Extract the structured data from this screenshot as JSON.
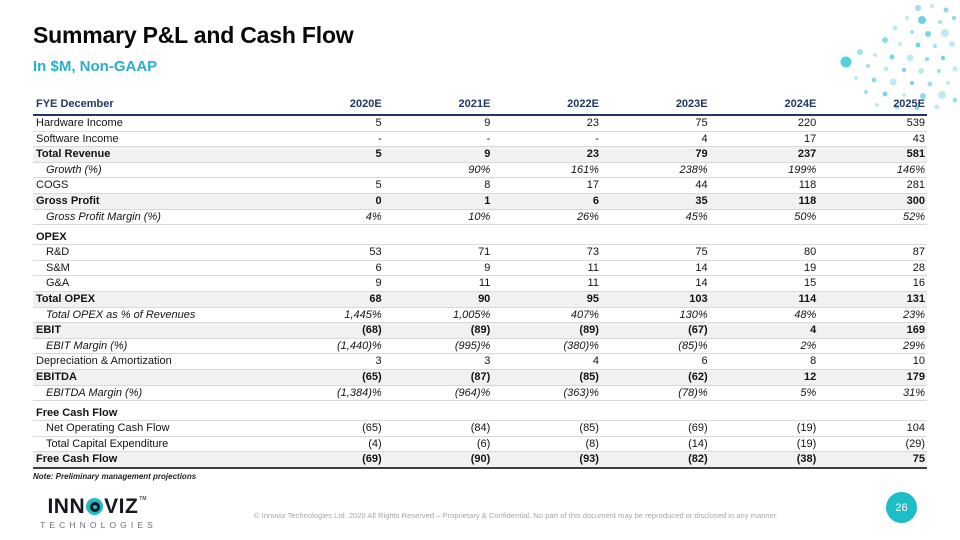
{
  "slide": {
    "title": "Summary P&L and Cash Flow",
    "subtitle": "In $M, Non-GAAP",
    "note": "Note: Preliminary management projections",
    "copyright": "© Innoviz Technologies Ltd. 2020 All Rights Reserved – Proprietary & Confidential. No part of this document may be reproduced or disclosed in any manner.",
    "page_number": "26"
  },
  "logo": {
    "word_part1": "INN",
    "word_part2": "VIZ",
    "tm": "TM",
    "subtext": "TECHNOLOGIES",
    "o_icon": "lidar-eye-icon"
  },
  "colors": {
    "teal": "#1EBEC9",
    "subtitle_teal": "#29AFC9",
    "navy": "#1F3864",
    "row_band": "#F1F1F1",
    "row_line": "#D9D9D9",
    "footer_gray": "#A6A6A6"
  },
  "table": {
    "columns": [
      "FYE December",
      "2020E",
      "2021E",
      "2022E",
      "2023E",
      "2024E",
      "2025E"
    ],
    "rows": [
      {
        "label": "Hardware Income",
        "style": "plain",
        "values": [
          "5",
          "9",
          "23",
          "75",
          "220",
          "539"
        ]
      },
      {
        "label": "Software Income",
        "style": "plain",
        "values": [
          "-",
          "-",
          "-",
          "4",
          "17",
          "43"
        ]
      },
      {
        "label": "Total Revenue",
        "style": "total",
        "values": [
          "5",
          "9",
          "23",
          "79",
          "237",
          "581"
        ]
      },
      {
        "label": "Growth (%)",
        "style": "italic",
        "values": [
          "",
          "90%",
          "161%",
          "238%",
          "199%",
          "146%"
        ]
      },
      {
        "label": "COGS",
        "style": "plain",
        "values": [
          "5",
          "8",
          "17",
          "44",
          "118",
          "281"
        ]
      },
      {
        "label": "Gross Profit",
        "style": "total",
        "values": [
          "0",
          "1",
          "6",
          "35",
          "118",
          "300"
        ]
      },
      {
        "label": "Gross Profit Margin (%)",
        "style": "italic",
        "values": [
          "4%",
          "10%",
          "26%",
          "45%",
          "50%",
          "52%"
        ]
      },
      {
        "type": "spacer"
      },
      {
        "label": "OPEX",
        "style": "section",
        "values": [
          "",
          "",
          "",
          "",
          "",
          ""
        ]
      },
      {
        "label": "R&D",
        "style": "sub",
        "values": [
          "53",
          "71",
          "73",
          "75",
          "80",
          "87"
        ]
      },
      {
        "label": "S&M",
        "style": "sub",
        "values": [
          "6",
          "9",
          "11",
          "14",
          "19",
          "28"
        ]
      },
      {
        "label": "G&A",
        "style": "sub",
        "values": [
          "9",
          "11",
          "11",
          "14",
          "15",
          "16"
        ]
      },
      {
        "label": "Total OPEX",
        "style": "total",
        "values": [
          "68",
          "90",
          "95",
          "103",
          "114",
          "131"
        ]
      },
      {
        "label": "Total OPEX as % of Revenues",
        "style": "italic",
        "values": [
          "1,445%",
          "1,005%",
          "407%",
          "130%",
          "48%",
          "23%"
        ]
      },
      {
        "label": "EBIT",
        "style": "total",
        "values": [
          "(68)",
          "(89)",
          "(89)",
          "(67)",
          "4",
          "169"
        ]
      },
      {
        "label": "EBIT Margin (%)",
        "style": "italic",
        "values": [
          "(1,440)%",
          "(995)%",
          "(380)%",
          "(85)%",
          "2%",
          "29%"
        ]
      },
      {
        "label": "Depreciation & Amortization",
        "style": "plain",
        "values": [
          "3",
          "3",
          "4",
          "6",
          "8",
          "10"
        ]
      },
      {
        "label": "EBITDA",
        "style": "total",
        "values": [
          "(65)",
          "(87)",
          "(85)",
          "(62)",
          "12",
          "179"
        ]
      },
      {
        "label": "EBITDA Margin (%)",
        "style": "italic",
        "values": [
          "(1,384)%",
          "(964)%",
          "(363)%",
          "(78)%",
          "5%",
          "31%"
        ]
      },
      {
        "type": "spacer"
      },
      {
        "label": "Free Cash Flow",
        "style": "section",
        "values": [
          "",
          "",
          "",
          "",
          "",
          ""
        ]
      },
      {
        "label": "Net Operating Cash Flow",
        "style": "sub",
        "values": [
          "(65)",
          "(84)",
          "(85)",
          "(69)",
          "(19)",
          "104"
        ]
      },
      {
        "label": "Total Capital Expenditure",
        "style": "sub",
        "values": [
          "(4)",
          "(6)",
          "(8)",
          "(14)",
          "(19)",
          "(29)"
        ]
      },
      {
        "label": "Free Cash Flow",
        "style": "total final",
        "values": [
          "(69)",
          "(90)",
          "(93)",
          "(82)",
          "(38)",
          "75"
        ]
      }
    ]
  }
}
